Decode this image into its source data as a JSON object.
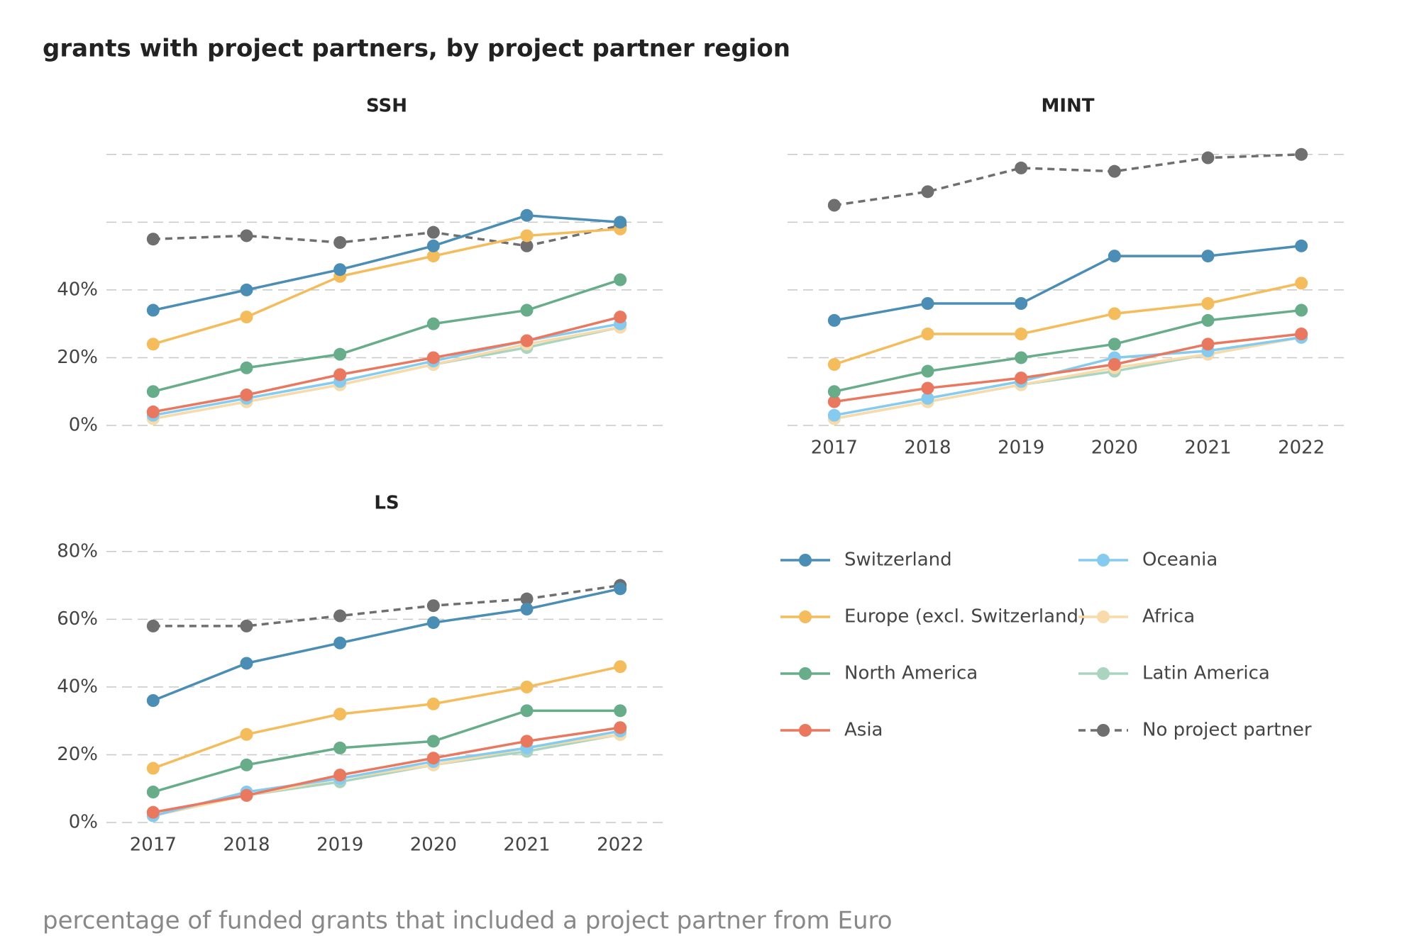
{
  "chart_data": {
    "type": "line",
    "title": "grants with project partners, by project partner region",
    "ylim": [
      0,
      90
    ],
    "grid": [
      0,
      20,
      40,
      60,
      80
    ],
    "series": [
      {
        "name": "Switzerland",
        "color": "#4a8db5"
      },
      {
        "name": "Europe (excl. Switzerland)",
        "color": "#f4bc5a"
      },
      {
        "name": "North America",
        "color": "#68ad8a"
      },
      {
        "name": "Asia",
        "color": "#e9785f"
      },
      {
        "name": "Oceania",
        "color": "#85cbef"
      },
      {
        "name": "Africa",
        "color": "#f8dba8"
      },
      {
        "name": "Latin America",
        "color": "#a9d5c0"
      },
      {
        "name": "No project partner",
        "color": "#6f6f6f",
        "dashed": true
      }
    ],
    "panels": [
      {
        "title": "SSH",
        "yticks": [
          {
            "value": 0,
            "label": "0%"
          },
          {
            "value": 20,
            "label": "20%"
          },
          {
            "value": 40,
            "label": "40%"
          }
        ],
        "values": [
          [
            34,
            40,
            46,
            53,
            62,
            60
          ],
          [
            24,
            32,
            44,
            50,
            56,
            58
          ],
          [
            10,
            17,
            21,
            30,
            34,
            43
          ],
          [
            4,
            9,
            15,
            20,
            25,
            32
          ],
          [
            3,
            8,
            13,
            19,
            25,
            30
          ],
          [
            2,
            7,
            12,
            18,
            24,
            29
          ],
          [
            2,
            7,
            12,
            18,
            23,
            29
          ],
          [
            55,
            56,
            54,
            57,
            53,
            59
          ]
        ]
      },
      {
        "title": "MINT",
        "categories": [
          "2017",
          "2018",
          "2019",
          "2020",
          "2021",
          "2022"
        ],
        "values": [
          [
            31,
            36,
            36,
            50,
            50,
            53
          ],
          [
            18,
            27,
            27,
            33,
            36,
            42
          ],
          [
            10,
            16,
            20,
            24,
            31,
            34
          ],
          [
            7,
            11,
            14,
            18,
            24,
            27
          ],
          [
            3,
            8,
            13,
            20,
            22,
            26
          ],
          [
            2,
            7,
            12,
            17,
            21,
            26
          ],
          [
            2,
            7,
            12,
            16,
            21,
            26
          ],
          [
            65,
            69,
            76,
            75,
            79,
            80
          ]
        ]
      },
      {
        "title": "LS",
        "categories": [
          "2017",
          "2018",
          "2019",
          "2020",
          "2021",
          "2022"
        ],
        "yticks": [
          {
            "value": 0,
            "label": "0%"
          },
          {
            "value": 20,
            "label": "20%"
          },
          {
            "value": 40,
            "label": "40%"
          },
          {
            "value": 60,
            "label": "60%"
          },
          {
            "value": 80,
            "label": "80%"
          }
        ],
        "values": [
          [
            36,
            47,
            53,
            59,
            63,
            69
          ],
          [
            16,
            26,
            32,
            35,
            40,
            46
          ],
          [
            9,
            17,
            22,
            24,
            33,
            33
          ],
          [
            3,
            8,
            14,
            19,
            24,
            28
          ],
          [
            2,
            9,
            13,
            18,
            22,
            27
          ],
          [
            2,
            8,
            13,
            17,
            22,
            26
          ],
          [
            2,
            8,
            12,
            17,
            21,
            26
          ],
          [
            58,
            58,
            61,
            64,
            66,
            70
          ]
        ]
      }
    ],
    "body_text": "percentage of funded grants that included a project partner from Euro"
  }
}
